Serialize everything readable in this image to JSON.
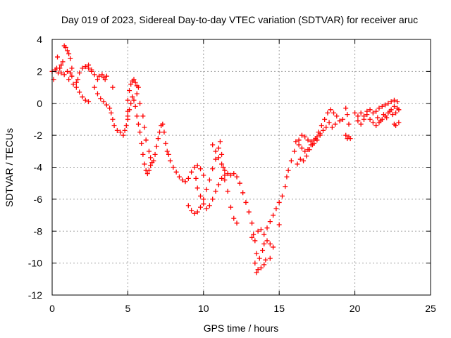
{
  "chart_data": {
    "type": "scatter",
    "title": "Day 019 of 2023, Sidereal Day-to-day VTEC variation (SDTVAR) for receiver aruc",
    "xlabel": "GPS time / hours",
    "ylabel": "SDTVAR / TECUs",
    "xlim": [
      0,
      25
    ],
    "ylim": [
      -12,
      4
    ],
    "xticks": [
      0,
      5,
      10,
      15,
      20,
      25
    ],
    "yticks": [
      -12,
      -10,
      -8,
      -6,
      -4,
      -2,
      0,
      2,
      4
    ],
    "xtick_labels": [
      "0",
      "5",
      "10",
      "15",
      "20",
      "25"
    ],
    "ytick_labels": [
      "-12",
      "-10",
      "-8",
      "-6",
      "-4",
      "-2",
      "0",
      "2",
      "4"
    ],
    "grid": true,
    "marker": "plus",
    "colors": {
      "series": "#ff0000",
      "axis": "#000000",
      "grid": "#a0a0a0"
    },
    "series": [
      {
        "name": "SDTVAR",
        "points": [
          [
            0.0,
            2.0
          ],
          [
            0.1,
            1.5
          ],
          [
            0.2,
            2.1
          ],
          [
            0.3,
            2.2
          ],
          [
            0.4,
            1.9
          ],
          [
            0.5,
            2.2
          ],
          [
            0.6,
            2.4
          ],
          [
            0.7,
            2.6
          ],
          [
            0.8,
            3.6
          ],
          [
            0.9,
            3.5
          ],
          [
            1.0,
            3.3
          ],
          [
            1.1,
            3.1
          ],
          [
            1.2,
            2.8
          ],
          [
            1.3,
            2.2
          ],
          [
            1.2,
            1.9
          ],
          [
            1.1,
            1.5
          ],
          [
            1.4,
            1.2
          ],
          [
            1.6,
            1.0
          ],
          [
            1.8,
            0.7
          ],
          [
            2.0,
            0.4
          ],
          [
            2.2,
            0.2
          ],
          [
            2.4,
            0.1
          ],
          [
            0.35,
            2.9
          ],
          [
            0.5,
            2.2
          ],
          [
            0.6,
            1.9
          ],
          [
            0.8,
            1.8
          ],
          [
            1.0,
            2.0
          ],
          [
            1.3,
            1.7
          ],
          [
            1.6,
            1.3
          ],
          [
            1.7,
            1.5
          ],
          [
            1.8,
            1.9
          ],
          [
            2.0,
            2.2
          ],
          [
            2.2,
            2.3
          ],
          [
            2.4,
            2.2
          ],
          [
            2.6,
            2.0
          ],
          [
            2.8,
            1.8
          ],
          [
            3.0,
            1.5
          ],
          [
            3.1,
            1.7
          ],
          [
            3.3,
            1.8
          ],
          [
            3.4,
            1.6
          ],
          [
            3.5,
            1.5
          ],
          [
            3.6,
            1.7
          ],
          [
            2.4,
            2.4
          ],
          [
            2.6,
            2.1
          ],
          [
            2.8,
            1.0
          ],
          [
            3.0,
            0.6
          ],
          [
            3.2,
            0.3
          ],
          [
            3.4,
            0.1
          ],
          [
            3.6,
            -0.1
          ],
          [
            3.8,
            -0.3
          ],
          [
            4.0,
            1.0
          ],
          [
            3.9,
            -0.6
          ],
          [
            4.0,
            -1.0
          ],
          [
            4.1,
            -1.4
          ],
          [
            4.3,
            -1.7
          ],
          [
            4.5,
            -1.8
          ],
          [
            4.7,
            -2.0
          ],
          [
            4.8,
            -1.7
          ],
          [
            4.9,
            -1.4
          ],
          [
            5.0,
            -1.0
          ],
          [
            5.0,
            -0.5
          ],
          [
            5.0,
            0.2
          ],
          [
            5.1,
            0.8
          ],
          [
            5.2,
            1.2
          ],
          [
            5.3,
            1.4
          ],
          [
            5.4,
            1.5
          ],
          [
            5.5,
            1.3
          ],
          [
            5.6,
            1.1
          ],
          [
            5.7,
            1.0
          ],
          [
            5.0,
            -0.8
          ],
          [
            5.1,
            -0.4
          ],
          [
            5.2,
            0.0
          ],
          [
            5.3,
            0.4
          ],
          [
            5.4,
            0.2
          ],
          [
            5.5,
            -0.2
          ],
          [
            5.6,
            -0.8
          ],
          [
            5.7,
            -1.3
          ],
          [
            5.8,
            -1.8
          ],
          [
            5.9,
            -2.5
          ],
          [
            6.0,
            -3.2
          ],
          [
            6.1,
            -3.8
          ],
          [
            6.2,
            -4.2
          ],
          [
            6.3,
            -4.4
          ],
          [
            6.4,
            -4.2
          ],
          [
            6.5,
            -3.9
          ],
          [
            6.6,
            -3.7
          ],
          [
            5.6,
            0.6
          ],
          [
            5.8,
            0.0
          ],
          [
            6.0,
            -0.8
          ],
          [
            6.1,
            -1.5
          ],
          [
            6.2,
            -2.3
          ],
          [
            6.4,
            -3.0
          ],
          [
            6.5,
            -3.4
          ],
          [
            6.7,
            -3.6
          ],
          [
            6.8,
            -3.2
          ],
          [
            6.9,
            -2.7
          ],
          [
            7.0,
            -2.2
          ],
          [
            7.1,
            -1.8
          ],
          [
            7.2,
            -1.4
          ],
          [
            7.3,
            -1.3
          ],
          [
            7.4,
            -1.8
          ],
          [
            7.5,
            -2.5
          ],
          [
            7.6,
            -3.0
          ],
          [
            7.7,
            -3.2
          ],
          [
            7.8,
            -3.6
          ],
          [
            8.0,
            -4.0
          ],
          [
            8.2,
            -4.3
          ],
          [
            8.4,
            -4.6
          ],
          [
            8.6,
            -4.8
          ],
          [
            8.8,
            -4.9
          ],
          [
            9.0,
            -4.7
          ],
          [
            9.2,
            -4.3
          ],
          [
            9.4,
            -4.0
          ],
          [
            9.6,
            -3.9
          ],
          [
            9.8,
            -4.1
          ],
          [
            10.0,
            -4.5
          ],
          [
            9.5,
            -4.7
          ],
          [
            9.6,
            -5.3
          ],
          [
            9.8,
            -5.8
          ],
          [
            10.0,
            -6.3
          ],
          [
            10.2,
            -6.6
          ],
          [
            10.4,
            -6.4
          ],
          [
            10.6,
            -6.0
          ],
          [
            10.8,
            -5.5
          ],
          [
            11.0,
            -5.1
          ],
          [
            11.2,
            -4.7
          ],
          [
            11.4,
            -4.8
          ],
          [
            11.6,
            -5.5
          ],
          [
            11.8,
            -6.5
          ],
          [
            12.0,
            -7.2
          ],
          [
            12.2,
            -7.5
          ],
          [
            9.0,
            -6.4
          ],
          [
            9.2,
            -6.7
          ],
          [
            9.4,
            -6.9
          ],
          [
            9.6,
            -6.8
          ],
          [
            9.8,
            -6.5
          ],
          [
            10.0,
            -6.0
          ],
          [
            10.2,
            -5.4
          ],
          [
            10.4,
            -4.8
          ],
          [
            10.6,
            -4.1
          ],
          [
            10.8,
            -3.5
          ],
          [
            11.0,
            -2.8
          ],
          [
            11.1,
            -2.4
          ],
          [
            11.2,
            -3.2
          ],
          [
            11.3,
            -4.0
          ],
          [
            11.4,
            -4.5
          ],
          [
            10.6,
            -2.6
          ],
          [
            10.8,
            -3.0
          ],
          [
            11.0,
            -3.4
          ],
          [
            11.2,
            -3.8
          ],
          [
            11.4,
            -4.2
          ],
          [
            11.6,
            -4.4
          ],
          [
            11.8,
            -4.5
          ],
          [
            12.0,
            -4.4
          ],
          [
            12.2,
            -4.6
          ],
          [
            12.4,
            -5.0
          ],
          [
            12.6,
            -5.6
          ],
          [
            12.8,
            -6.2
          ],
          [
            13.0,
            -6.8
          ],
          [
            13.2,
            -7.5
          ],
          [
            13.3,
            -8.2
          ],
          [
            13.2,
            -8.4
          ],
          [
            13.4,
            -8.6
          ],
          [
            13.5,
            -9.4
          ],
          [
            13.4,
            -10.0
          ],
          [
            13.5,
            -10.6
          ],
          [
            13.6,
            -10.4
          ],
          [
            13.8,
            -10.3
          ],
          [
            14.0,
            -10.1
          ],
          [
            14.1,
            -9.8
          ],
          [
            13.7,
            -9.7
          ],
          [
            13.9,
            -9.2
          ],
          [
            14.0,
            -8.8
          ],
          [
            14.2,
            -8.6
          ],
          [
            14.4,
            -8.8
          ],
          [
            13.6,
            -8.0
          ],
          [
            13.8,
            -7.9
          ],
          [
            14.0,
            -8.2
          ],
          [
            14.2,
            -7.8
          ],
          [
            14.4,
            -7.4
          ],
          [
            14.6,
            -7.0
          ],
          [
            14.8,
            -6.6
          ],
          [
            15.0,
            -6.2
          ],
          [
            15.2,
            -5.8
          ],
          [
            15.4,
            -5.2
          ],
          [
            15.5,
            -4.6
          ],
          [
            15.0,
            -7.6
          ],
          [
            14.6,
            -9.0
          ],
          [
            14.4,
            -9.7
          ],
          [
            15.6,
            -4.2
          ],
          [
            15.8,
            -3.6
          ],
          [
            16.0,
            -3.0
          ],
          [
            16.1,
            -2.4
          ],
          [
            16.3,
            -2.6
          ],
          [
            16.5,
            -2.8
          ],
          [
            16.7,
            -3.0
          ],
          [
            16.9,
            -2.9
          ],
          [
            17.1,
            -2.6
          ],
          [
            17.3,
            -2.3
          ],
          [
            17.5,
            -2.1
          ],
          [
            17.7,
            -1.9
          ],
          [
            17.9,
            -1.7
          ],
          [
            18.1,
            -1.5
          ],
          [
            18.3,
            -1.2
          ],
          [
            16.2,
            -3.8
          ],
          [
            16.4,
            -3.5
          ],
          [
            16.6,
            -3.6
          ],
          [
            16.8,
            -3.3
          ],
          [
            17.0,
            -2.9
          ],
          [
            17.2,
            -2.6
          ],
          [
            17.4,
            -2.2
          ],
          [
            17.6,
            -1.8
          ],
          [
            17.8,
            -1.4
          ],
          [
            18.0,
            -1.0
          ],
          [
            18.2,
            -0.6
          ],
          [
            18.4,
            -0.4
          ],
          [
            18.6,
            -0.6
          ],
          [
            18.8,
            -0.8
          ],
          [
            19.0,
            -1.1
          ],
          [
            19.2,
            -1.0
          ],
          [
            16.3,
            -2.3
          ],
          [
            16.5,
            -2.0
          ],
          [
            16.7,
            -2.1
          ],
          [
            16.9,
            -2.3
          ],
          [
            17.1,
            -2.4
          ],
          [
            17.3,
            -2.5
          ],
          [
            17.5,
            -2.3
          ],
          [
            17.7,
            -2.0
          ],
          [
            18.5,
            -1.5
          ],
          [
            18.7,
            -1.3
          ],
          [
            19.4,
            -0.3
          ],
          [
            19.5,
            -0.7
          ],
          [
            19.6,
            -1.3
          ],
          [
            19.4,
            -2.0
          ],
          [
            19.5,
            -2.2
          ],
          [
            19.6,
            -2.1
          ],
          [
            19.7,
            -2.2
          ],
          [
            20.0,
            -0.6
          ],
          [
            20.2,
            -0.8
          ],
          [
            20.4,
            -0.6
          ],
          [
            20.6,
            -0.8
          ],
          [
            20.8,
            -0.7
          ],
          [
            21.0,
            -1.0
          ],
          [
            21.2,
            -1.2
          ],
          [
            21.4,
            -1.4
          ],
          [
            21.6,
            -1.2
          ],
          [
            21.8,
            -1.0
          ],
          [
            22.0,
            -0.8
          ],
          [
            22.2,
            -0.6
          ],
          [
            22.4,
            -0.4
          ],
          [
            22.6,
            -0.2
          ],
          [
            22.8,
            0.1
          ],
          [
            20.2,
            -1.1
          ],
          [
            20.4,
            -1.3
          ],
          [
            20.6,
            -1.0
          ],
          [
            20.8,
            -0.5
          ],
          [
            21.0,
            -0.4
          ],
          [
            21.2,
            -0.6
          ],
          [
            21.4,
            -0.5
          ],
          [
            21.6,
            -0.3
          ],
          [
            21.8,
            -0.2
          ],
          [
            22.0,
            -0.1
          ],
          [
            22.2,
            0.0
          ],
          [
            22.4,
            0.1
          ],
          [
            22.6,
            0.2
          ],
          [
            22.8,
            -0.3
          ],
          [
            21.5,
            -0.9
          ],
          [
            21.7,
            -1.1
          ],
          [
            21.9,
            -0.7
          ],
          [
            22.1,
            -0.9
          ],
          [
            22.3,
            -0.5
          ],
          [
            22.5,
            -0.7
          ],
          [
            22.7,
            -0.6
          ],
          [
            22.9,
            -0.4
          ],
          [
            22.6,
            -1.3
          ],
          [
            22.7,
            -1.4
          ],
          [
            22.9,
            -1.2
          ]
        ]
      }
    ]
  }
}
